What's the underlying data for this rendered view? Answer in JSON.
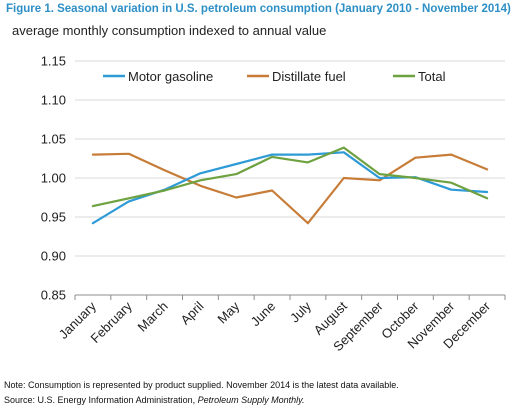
{
  "title": "Figure 1. Seasonal variation in U.S. petroleum consumption (January 2010 - November 2014)",
  "note": "Note: Consumption is represented by product supplied. November 2014 is the latest data available.",
  "source_prefix": "Source: U.S. Energy Information Administration, ",
  "source_pub": "Petroleum Supply Monthly.",
  "chart_data": {
    "type": "line",
    "ylabel": "average monthly  consumption indexed to annual value",
    "xlabel": "",
    "ylim": [
      0.85,
      1.15
    ],
    "yticks": [
      0.85,
      0.9,
      0.95,
      1.0,
      1.05,
      1.1,
      1.15
    ],
    "ytick_labels": [
      "0.85",
      "0.90",
      "0.95",
      "1.00",
      "1.05",
      "1.10",
      "1.15"
    ],
    "grid": true,
    "legend": "top",
    "categories": [
      "January",
      "February",
      "March",
      "April",
      "May",
      "June",
      "July",
      "August",
      "September",
      "October",
      "November",
      "December"
    ],
    "series": [
      {
        "name": "Motor gasoline",
        "color": "#2e9bd6",
        "values": [
          0.942,
          0.97,
          0.985,
          1.006,
          1.018,
          1.03,
          1.03,
          1.033,
          1.0,
          1.001,
          0.985,
          0.982
        ]
      },
      {
        "name": "Distillate fuel",
        "color": "#c77c38",
        "values": [
          1.03,
          1.031,
          1.01,
          0.99,
          0.975,
          0.984,
          0.942,
          1.0,
          0.997,
          1.026,
          1.03,
          1.011
        ]
      },
      {
        "name": "Total",
        "color": "#6ea13f",
        "values": [
          0.964,
          0.974,
          0.984,
          0.997,
          1.005,
          1.027,
          1.02,
          1.039,
          1.005,
          1.0,
          0.994,
          0.974
        ]
      }
    ]
  }
}
